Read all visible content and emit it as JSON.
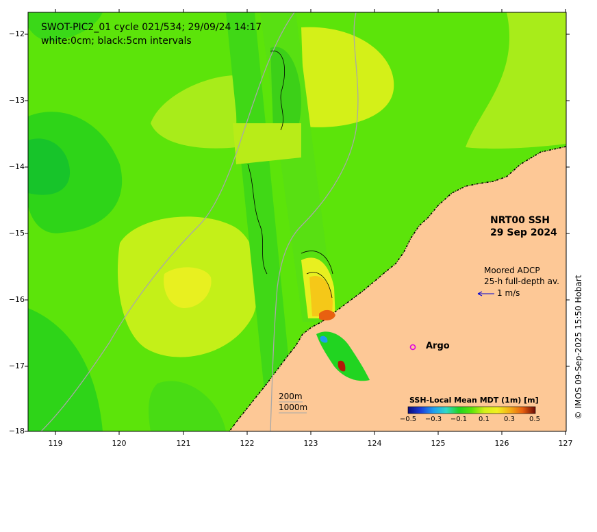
{
  "title": "SWOT-PIC2_01 cycle 021/534; 29/09/24 14:17",
  "subtitle": "white:0cm; black:5cm intervals",
  "product": {
    "line1": "NRT00 SSH",
    "line2": "29 Sep 2024"
  },
  "adcp": {
    "line1": "Moored ADCP",
    "line2": "25-h full-depth av.",
    "scale_label": "1 m/s"
  },
  "argo_label": "Argo",
  "isobaths": {
    "shallow": "200m",
    "deep": "1000m"
  },
  "colorbar": {
    "title": "SSH-Local Mean MDT (1m) [m]",
    "ticks": [
      "−0.5",
      "−0.3",
      "−0.1",
      "0.1",
      "0.3",
      "0.5"
    ],
    "colors": [
      "#0a0a7a",
      "#1a3cd8",
      "#1e9ef0",
      "#30d8c8",
      "#21d421",
      "#a8f020",
      "#f0f020",
      "#f5b015",
      "#e86010",
      "#b01a08",
      "#6a0a04"
    ]
  },
  "credit": "© IMOS 09-Sep-2025 15:50 Hobart",
  "axes": {
    "x_ticks": [
      "119",
      "120",
      "121",
      "122",
      "123",
      "124",
      "125",
      "126",
      "127"
    ],
    "y_ticks": [
      "−12",
      "−13",
      "−14",
      "−15",
      "−16",
      "−17",
      "−18"
    ],
    "xlim": [
      118.65,
      127.0
    ],
    "ylim": [
      -18.0,
      -11.8
    ]
  },
  "colors": {
    "land": "#fdc896",
    "sea_base": "#5ce40a",
    "coast": "#000000",
    "isobath": "#a8a8a8",
    "adcp_arrow": "#0000d0",
    "argo": "#e000e0"
  }
}
